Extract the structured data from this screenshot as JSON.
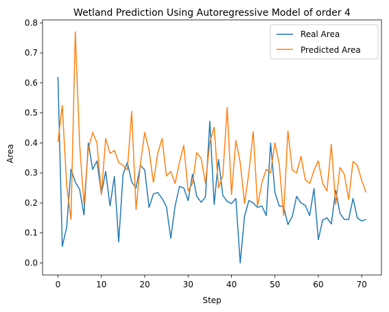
{
  "chart_data": {
    "type": "line",
    "title": "Wetland Prediction Using Autoregressive Model of order 4",
    "xlabel": "Step",
    "ylabel": "Area",
    "xlim": [
      -3.55,
      74.55
    ],
    "ylim": [
      -0.04,
      0.81
    ],
    "xticks": [
      0,
      10,
      20,
      30,
      40,
      50,
      60,
      70
    ],
    "yticks": [
      0.0,
      0.1,
      0.2,
      0.3,
      0.4,
      0.5,
      0.6,
      0.7,
      0.8
    ],
    "xtick_labels": [
      "0",
      "10",
      "20",
      "30",
      "40",
      "50",
      "60",
      "70"
    ],
    "ytick_labels": [
      "0.0",
      "0.1",
      "0.2",
      "0.3",
      "0.4",
      "0.5",
      "0.6",
      "0.7",
      "0.8"
    ],
    "grid": false,
    "legend_position": "top-right",
    "x": [
      0,
      1,
      2,
      3,
      4,
      5,
      6,
      7,
      8,
      9,
      10,
      11,
      12,
      13,
      14,
      15,
      16,
      17,
      18,
      19,
      20,
      21,
      22,
      23,
      24,
      25,
      26,
      27,
      28,
      29,
      30,
      31,
      32,
      33,
      34,
      35,
      36,
      37,
      38,
      39,
      40,
      41,
      42,
      43,
      44,
      45,
      46,
      47,
      48,
      49,
      50,
      51,
      52,
      53,
      54,
      55,
      56,
      57,
      58,
      59,
      60,
      61,
      62,
      63,
      64,
      65,
      66,
      67,
      68,
      69,
      70,
      71
    ],
    "series": [
      {
        "name": "Real Area",
        "color": "#1f77b4",
        "values": [
          0.62,
          0.055,
          0.118,
          0.312,
          0.27,
          0.245,
          0.16,
          0.4,
          0.312,
          0.34,
          0.23,
          0.305,
          0.19,
          0.288,
          0.07,
          0.295,
          0.335,
          0.27,
          0.25,
          0.325,
          0.31,
          0.185,
          0.23,
          0.235,
          0.215,
          0.188,
          0.082,
          0.19,
          0.255,
          0.25,
          0.208,
          0.295,
          0.222,
          0.202,
          0.22,
          0.472,
          0.195,
          0.345,
          0.225,
          0.205,
          0.198,
          0.215,
          0.0,
          0.155,
          0.208,
          0.2,
          0.185,
          0.19,
          0.158,
          0.4,
          0.235,
          0.19,
          0.188,
          0.128,
          0.155,
          0.222,
          0.2,
          0.192,
          0.158,
          0.248,
          0.078,
          0.143,
          0.15,
          0.13,
          0.242,
          0.165,
          0.145,
          0.145,
          0.215,
          0.15,
          0.14,
          0.145
        ]
      },
      {
        "name": "Predicted Area",
        "color": "#ff7f0e",
        "values": [
          0.403,
          0.525,
          0.26,
          0.145,
          0.77,
          0.395,
          0.195,
          0.38,
          0.435,
          0.4,
          0.228,
          0.415,
          0.365,
          0.375,
          0.335,
          0.325,
          0.31,
          0.505,
          0.178,
          0.33,
          0.435,
          0.375,
          0.268,
          0.365,
          0.415,
          0.29,
          0.305,
          0.265,
          0.335,
          0.392,
          0.24,
          0.265,
          0.368,
          0.348,
          0.265,
          0.402,
          0.452,
          0.25,
          0.292,
          0.518,
          0.228,
          0.408,
          0.335,
          0.198,
          0.302,
          0.438,
          0.19,
          0.268,
          0.312,
          0.3,
          0.4,
          0.33,
          0.158,
          0.44,
          0.31,
          0.3,
          0.355,
          0.278,
          0.265,
          0.308,
          0.34,
          0.265,
          0.24,
          0.395,
          0.195,
          0.318,
          0.295,
          0.212,
          0.338,
          0.325,
          0.275,
          0.235
        ]
      }
    ]
  }
}
